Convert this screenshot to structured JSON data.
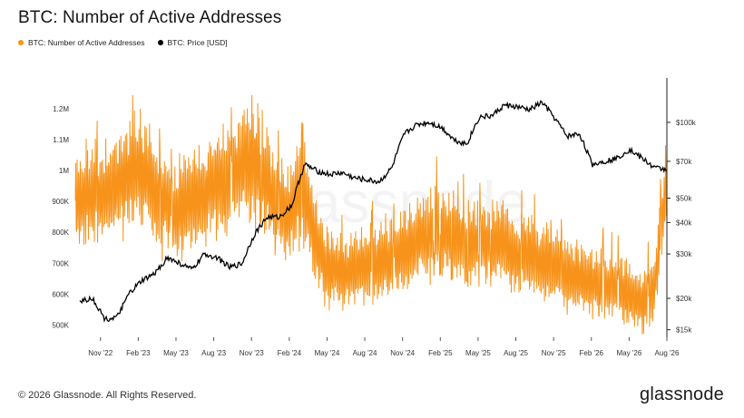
{
  "header": {
    "title": "BTC: Number of Active Addresses"
  },
  "legend": [
    {
      "label": "BTC: Number of Active Addresses",
      "color": "#f7931a"
    },
    {
      "label": "BTC: Price [USD]",
      "color": "#000000"
    }
  ],
  "watermark": "glassnode",
  "footer": {
    "copyright": "© 2026 Glassnode. All Rights Reserved.",
    "logo": "glassnode"
  },
  "chart_data": {
    "type": "line",
    "title": "BTC: Number of Active Addresses",
    "x_ticks": [
      "Nov '22",
      "Feb '23",
      "May '23",
      "Aug '23",
      "Nov '23",
      "Feb '24",
      "May '24",
      "Aug '24",
      "Nov '24",
      "Feb '25",
      "May '25",
      "Aug '25",
      "Nov '25",
      "Feb '26",
      "May '26",
      "Aug '26"
    ],
    "y_left_ticks": [
      "500K",
      "600K",
      "700K",
      "800K",
      "900K",
      "1M",
      "1.1M",
      "1.2M"
    ],
    "y_left_ticks_values": [
      500000,
      600000,
      700000,
      800000,
      900000,
      1000000,
      1100000,
      1200000
    ],
    "y_right_ticks": [
      "$15k",
      "$20k",
      "$30k",
      "$40k",
      "$50k",
      "$70k",
      "$100k"
    ],
    "y_right_ticks_values": [
      15000,
      20000,
      30000,
      40000,
      50000,
      70000,
      100000
    ],
    "y_left_range": [
      460000,
      1300000
    ],
    "y_right_scale": "log",
    "y_right_range": [
      14000,
      150000
    ],
    "x_range": [
      "2022-09",
      "2026-08"
    ],
    "grid": false,
    "legend_position": "top-left",
    "series": [
      {
        "name": "BTC: Number of Active Addresses",
        "axis": "left",
        "color": "#f7931a",
        "x": [
          "2022-09",
          "2022-10",
          "2022-11",
          "2022-12",
          "2023-01",
          "2023-02",
          "2023-03",
          "2023-04",
          "2023-05",
          "2023-06",
          "2023-07",
          "2023-08",
          "2023-09",
          "2023-10",
          "2023-11",
          "2023-12",
          "2024-01",
          "2024-02",
          "2024-03",
          "2024-04",
          "2024-05",
          "2024-06",
          "2024-07",
          "2024-08",
          "2024-09",
          "2024-10",
          "2024-11",
          "2024-12",
          "2025-01",
          "2025-02",
          "2025-03",
          "2025-04",
          "2025-05",
          "2025-06",
          "2025-07",
          "2025-08",
          "2025-09",
          "2025-10",
          "2025-11",
          "2025-12",
          "2026-01",
          "2026-02",
          "2026-03",
          "2026-04",
          "2026-05",
          "2026-06",
          "2026-07",
          "2026-08"
        ],
        "values": [
          900000,
          930000,
          920000,
          940000,
          980000,
          1010000,
          960000,
          900000,
          860000,
          900000,
          920000,
          960000,
          980000,
          1000000,
          1040000,
          980000,
          900000,
          850000,
          950000,
          780000,
          690000,
          670000,
          680000,
          690000,
          700000,
          710000,
          740000,
          760000,
          800000,
          810000,
          790000,
          760000,
          780000,
          770000,
          760000,
          720000,
          740000,
          700000,
          690000,
          670000,
          650000,
          640000,
          630000,
          620000,
          600000,
          580000,
          610000,
          980000
        ]
      },
      {
        "name": "BTC: Price [USD]",
        "axis": "right",
        "color": "#000000",
        "x": [
          "2022-09",
          "2022-10",
          "2022-11",
          "2022-12",
          "2023-01",
          "2023-02",
          "2023-03",
          "2023-04",
          "2023-05",
          "2023-06",
          "2023-07",
          "2023-08",
          "2023-09",
          "2023-10",
          "2023-11",
          "2023-12",
          "2024-01",
          "2024-02",
          "2024-03",
          "2024-04",
          "2024-05",
          "2024-06",
          "2024-07",
          "2024-08",
          "2024-09",
          "2024-10",
          "2024-11",
          "2024-12",
          "2025-01",
          "2025-02",
          "2025-03",
          "2025-04",
          "2025-05",
          "2025-06",
          "2025-07",
          "2025-08",
          "2025-09",
          "2025-10",
          "2025-11",
          "2025-12",
          "2026-01",
          "2026-02",
          "2026-03",
          "2026-04",
          "2026-05",
          "2026-06",
          "2026-07",
          "2026-08"
        ],
        "values": [
          19500,
          20000,
          16500,
          16800,
          21000,
          23500,
          25000,
          29000,
          27500,
          26000,
          30000,
          29000,
          26500,
          27500,
          36000,
          42000,
          42000,
          47000,
          68000,
          64000,
          62000,
          63000,
          60000,
          59000,
          58000,
          66000,
          90000,
          98000,
          100000,
          95000,
          85000,
          82000,
          105000,
          106000,
          117000,
          115000,
          112000,
          120000,
          104000,
          88000,
          90000,
          68000,
          70000,
          72000,
          78000,
          72000,
          66000,
          65000
        ]
      }
    ]
  }
}
